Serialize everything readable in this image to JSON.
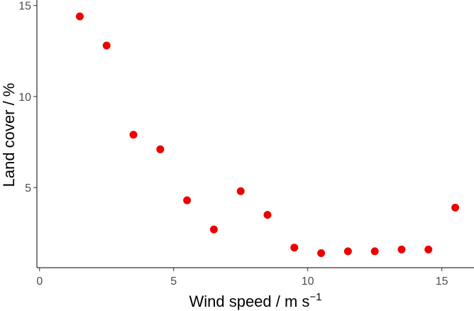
{
  "chart_data": {
    "type": "scatter",
    "x": [
      1.5,
      2.5,
      3.5,
      4.5,
      5.5,
      6.5,
      7.5,
      8.5,
      9.5,
      10.5,
      11.5,
      12.5,
      13.5,
      14.5,
      15.5
    ],
    "y": [
      14.4,
      12.8,
      7.9,
      7.1,
      4.3,
      2.7,
      4.8,
      3.5,
      1.7,
      1.4,
      1.5,
      1.5,
      1.6,
      1.6,
      3.9
    ],
    "xlabel": "Wind speed / m s",
    "xlabel_superscript": "−1",
    "ylabel": "Land cover / %",
    "xlim": [
      -0.1,
      16.2
    ],
    "ylim": [
      0.6,
      15.3
    ],
    "xticks": [
      0,
      5,
      10,
      15
    ],
    "xtick_labels": [
      "0",
      "5",
      "10",
      "15"
    ],
    "yticks": [
      5,
      10,
      15
    ],
    "ytick_labels": [
      "5",
      "10",
      "15"
    ],
    "point_color": "#ee0000",
    "grid": false,
    "legend": "none"
  }
}
